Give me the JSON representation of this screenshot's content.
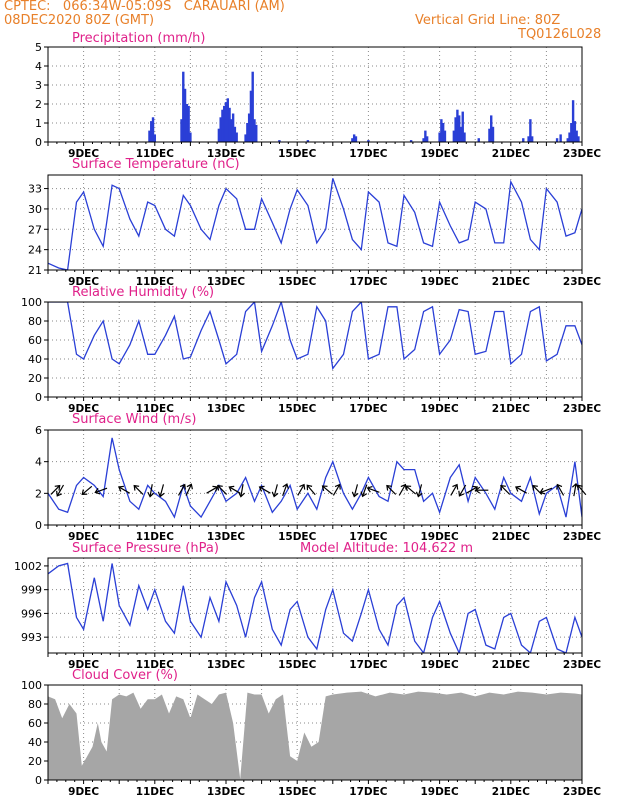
{
  "header": {
    "line1": "CPTEC:   066:34W-05:09S   CARAUARI (AM)",
    "line2": "08DEC2020 80Z (GMT)",
    "grid_note": "Vertical Grid Line: 80Z",
    "code": "TQ0126L028",
    "model_altitude": "Model Altitude: 104.622 m"
  },
  "colors": {
    "header": "#e8802a",
    "title": "#e0218a",
    "series": "#2a3fd6",
    "cloud": "#a6a6a6",
    "wind_arrow": "#000000"
  },
  "chart_data": [
    {
      "type": "bar",
      "title": "Precipitation (mm/h)",
      "x_day_range": [
        8,
        23
      ],
      "ylim": [
        0,
        5
      ],
      "yticks": [
        "0",
        "1",
        "2",
        "3",
        "4",
        "5"
      ],
      "xticks": [
        "9DEC",
        "11DEC",
        "13DEC",
        "15DEC",
        "17DEC",
        "19DEC",
        "21DEC",
        "23DEC"
      ],
      "bars": [
        [
          10.85,
          0.6
        ],
        [
          10.9,
          1.1
        ],
        [
          10.95,
          1.3
        ],
        [
          11.0,
          0.4
        ],
        [
          11.75,
          1.2
        ],
        [
          11.8,
          3.7
        ],
        [
          11.85,
          2.8
        ],
        [
          11.9,
          2.0
        ],
        [
          11.95,
          1.9
        ],
        [
          12.0,
          0.5
        ],
        [
          12.8,
          0.7
        ],
        [
          12.85,
          1.3
        ],
        [
          12.9,
          1.7
        ],
        [
          12.95,
          1.9
        ],
        [
          13.0,
          2.1
        ],
        [
          13.05,
          2.3
        ],
        [
          13.1,
          1.8
        ],
        [
          13.15,
          1.2
        ],
        [
          13.2,
          1.5
        ],
        [
          13.25,
          0.8
        ],
        [
          13.3,
          0.5
        ],
        [
          13.55,
          0.4
        ],
        [
          13.6,
          1.0
        ],
        [
          13.65,
          1.5
        ],
        [
          13.7,
          2.7
        ],
        [
          13.75,
          3.7
        ],
        [
          13.8,
          1.2
        ],
        [
          13.85,
          0.9
        ],
        [
          14.5,
          0.1
        ],
        [
          15.3,
          0.1
        ],
        [
          16.55,
          0.2
        ],
        [
          16.6,
          0.4
        ],
        [
          16.65,
          0.3
        ],
        [
          17.0,
          0.1
        ],
        [
          18.2,
          0.1
        ],
        [
          18.55,
          0.2
        ],
        [
          18.6,
          0.6
        ],
        [
          18.65,
          0.3
        ],
        [
          19.0,
          0.5
        ],
        [
          19.05,
          1.2
        ],
        [
          19.1,
          1.0
        ],
        [
          19.15,
          0.6
        ],
        [
          19.4,
          0.6
        ],
        [
          19.45,
          1.3
        ],
        [
          19.5,
          1.7
        ],
        [
          19.55,
          1.4
        ],
        [
          19.6,
          0.8
        ],
        [
          19.65,
          1.6
        ],
        [
          19.7,
          0.5
        ],
        [
          20.1,
          0.2
        ],
        [
          20.4,
          0.7
        ],
        [
          20.45,
          1.4
        ],
        [
          20.5,
          0.8
        ],
        [
          21.35,
          0.2
        ],
        [
          21.5,
          0.3
        ],
        [
          21.55,
          1.2
        ],
        [
          21.6,
          0.3
        ],
        [
          22.3,
          0.2
        ],
        [
          22.4,
          0.4
        ],
        [
          22.6,
          0.2
        ],
        [
          22.65,
          0.5
        ],
        [
          22.7,
          1.0
        ],
        [
          22.75,
          2.2
        ],
        [
          22.8,
          1.1
        ],
        [
          22.85,
          0.6
        ],
        [
          22.9,
          0.3
        ]
      ]
    },
    {
      "type": "line",
      "title": "Surface Temperature (nC)",
      "x_day_range": [
        8,
        23
      ],
      "ylim": [
        21,
        35
      ],
      "yticks": [
        "21",
        "24",
        "27",
        "30",
        "33"
      ],
      "xticks": [
        "9DEC",
        "11DEC",
        "13DEC",
        "15DEC",
        "17DEC",
        "19DEC",
        "21DEC",
        "23DEC"
      ],
      "x": [
        8.0,
        8.3,
        8.55,
        8.8,
        9.0,
        9.3,
        9.55,
        9.8,
        10.0,
        10.3,
        10.55,
        10.8,
        11.0,
        11.3,
        11.55,
        11.8,
        12.0,
        12.3,
        12.55,
        12.8,
        13.0,
        13.3,
        13.55,
        13.8,
        14.0,
        14.3,
        14.55,
        14.8,
        15.0,
        15.3,
        15.55,
        15.8,
        16.0,
        16.3,
        16.55,
        16.8,
        17.0,
        17.3,
        17.55,
        17.8,
        18.0,
        18.3,
        18.55,
        18.8,
        19.0,
        19.3,
        19.55,
        19.8,
        20.0,
        20.3,
        20.55,
        20.8,
        21.0,
        21.3,
        21.55,
        21.8,
        22.0,
        22.3,
        22.55,
        22.8,
        23.0
      ],
      "values": [
        22.0,
        21.3,
        21.0,
        31.0,
        32.5,
        27.0,
        24.5,
        33.5,
        33.0,
        28.5,
        26.0,
        31.0,
        30.5,
        27.0,
        26.0,
        32.0,
        30.5,
        27.0,
        25.5,
        30.5,
        33.0,
        31.5,
        27.0,
        27.0,
        31.5,
        28.0,
        25.0,
        30.0,
        32.8,
        30.5,
        25.0,
        27.0,
        34.5,
        30.0,
        25.5,
        24.0,
        32.5,
        31.0,
        25.0,
        24.5,
        32.0,
        29.5,
        25.0,
        24.5,
        31.0,
        27.5,
        25.0,
        25.5,
        31.0,
        30.0,
        25.0,
        25.0,
        34.0,
        31.0,
        25.5,
        24.0,
        33.0,
        31.0,
        26.0,
        26.5,
        30.0
      ]
    },
    {
      "type": "line",
      "title": "Relative Humidity (%)",
      "x_day_range": [
        8,
        23
      ],
      "ylim": [
        0,
        100
      ],
      "yticks": [
        "0",
        "20",
        "40",
        "60",
        "80",
        "100"
      ],
      "xticks": [
        "9DEC",
        "11DEC",
        "13DEC",
        "15DEC",
        "17DEC",
        "19DEC",
        "21DEC",
        "23DEC"
      ],
      "x": [
        8.0,
        8.3,
        8.55,
        8.8,
        9.0,
        9.3,
        9.55,
        9.8,
        10.0,
        10.3,
        10.55,
        10.8,
        11.0,
        11.3,
        11.55,
        11.8,
        12.0,
        12.3,
        12.55,
        12.8,
        13.0,
        13.3,
        13.55,
        13.8,
        14.0,
        14.3,
        14.55,
        14.8,
        15.0,
        15.3,
        15.55,
        15.8,
        16.0,
        16.3,
        16.55,
        16.8,
        17.0,
        17.3,
        17.55,
        17.8,
        18.0,
        18.3,
        18.55,
        18.8,
        19.0,
        19.3,
        19.55,
        19.8,
        20.0,
        20.3,
        20.55,
        20.8,
        21.0,
        21.3,
        21.55,
        21.8,
        22.0,
        22.3,
        22.55,
        22.8,
        23.0
      ],
      "values": [
        100,
        100,
        100,
        45,
        40,
        65,
        80,
        40,
        35,
        55,
        80,
        45,
        45,
        65,
        85,
        40,
        42,
        70,
        90,
        60,
        35,
        45,
        90,
        100,
        48,
        75,
        100,
        60,
        40,
        45,
        95,
        80,
        30,
        45,
        90,
        100,
        40,
        45,
        95,
        95,
        40,
        50,
        90,
        95,
        45,
        60,
        92,
        90,
        45,
        48,
        90,
        90,
        35,
        45,
        90,
        95,
        38,
        45,
        75,
        75,
        55
      ]
    },
    {
      "type": "line",
      "title": "Surface Wind (m/s)",
      "x_day_range": [
        8,
        23
      ],
      "ylim": [
        0,
        6
      ],
      "yticks": [
        "0",
        "2",
        "4",
        "6"
      ],
      "xticks": [
        "9DEC",
        "11DEC",
        "13DEC",
        "15DEC",
        "17DEC",
        "19DEC",
        "21DEC",
        "23DEC"
      ],
      "x": [
        8.0,
        8.3,
        8.55,
        8.8,
        9.0,
        9.3,
        9.55,
        9.8,
        10.0,
        10.3,
        10.55,
        10.8,
        11.0,
        11.3,
        11.55,
        11.8,
        12.0,
        12.3,
        12.55,
        12.8,
        13.0,
        13.3,
        13.55,
        13.8,
        14.0,
        14.3,
        14.55,
        14.8,
        15.0,
        15.3,
        15.55,
        15.8,
        16.0,
        16.3,
        16.55,
        16.8,
        17.0,
        17.3,
        17.55,
        17.8,
        18.0,
        18.3,
        18.55,
        18.8,
        19.0,
        19.3,
        19.55,
        19.8,
        20.0,
        20.3,
        20.55,
        20.8,
        21.0,
        21.3,
        21.55,
        21.8,
        22.0,
        22.3,
        22.55,
        22.8,
        23.0
      ],
      "values": [
        2.0,
        1.0,
        0.8,
        2.5,
        3.0,
        2.5,
        1.8,
        5.5,
        3.5,
        1.5,
        1.0,
        2.5,
        2.0,
        1.5,
        0.5,
        2.5,
        1.2,
        0.5,
        1.5,
        2.5,
        1.5,
        2.0,
        3.0,
        1.5,
        2.5,
        0.8,
        1.5,
        2.5,
        1.0,
        2.0,
        1.0,
        3.0,
        4.0,
        2.0,
        1.0,
        2.0,
        3.0,
        1.8,
        1.5,
        4.0,
        3.5,
        3.5,
        1.5,
        2.0,
        0.8,
        3.0,
        3.8,
        1.5,
        3.0,
        2.0,
        1.0,
        3.0,
        2.0,
        1.5,
        3.0,
        0.7,
        2.0,
        2.5,
        0.5,
        4.0,
        0.5
      ],
      "arrows": [
        [
          8.2,
          45
        ],
        [
          8.35,
          210
        ],
        [
          9.1,
          230
        ],
        [
          9.5,
          250
        ],
        [
          10.15,
          300
        ],
        [
          10.55,
          315
        ],
        [
          10.9,
          190
        ],
        [
          11.2,
          195
        ],
        [
          11.75,
          30
        ],
        [
          11.95,
          25
        ],
        [
          12.6,
          60
        ],
        [
          12.9,
          315
        ],
        [
          13.25,
          300
        ],
        [
          13.45,
          190
        ],
        [
          14.1,
          300
        ],
        [
          14.4,
          195
        ],
        [
          14.65,
          20
        ],
        [
          15.1,
          30
        ],
        [
          15.4,
          320
        ],
        [
          15.85,
          310
        ],
        [
          16.1,
          30
        ],
        [
          16.65,
          195
        ],
        [
          16.9,
          200
        ],
        [
          17.15,
          290
        ],
        [
          17.65,
          315
        ],
        [
          17.95,
          30
        ],
        [
          18.2,
          310
        ],
        [
          18.45,
          195
        ],
        [
          19.4,
          30
        ],
        [
          19.65,
          210
        ],
        [
          19.9,
          60
        ],
        [
          20.2,
          270
        ],
        [
          20.85,
          315
        ],
        [
          21.3,
          300
        ],
        [
          21.75,
          315
        ],
        [
          22.0,
          250
        ],
        [
          22.4,
          330
        ],
        [
          22.8,
          10
        ],
        [
          23.0,
          320
        ]
      ]
    },
    {
      "type": "line",
      "title": "Surface Pressure (hPa)",
      "x_day_range": [
        8,
        23
      ],
      "ylim": [
        991,
        1003
      ],
      "yticks": [
        "993",
        "996",
        "999",
        "1002"
      ],
      "xticks": [
        "9DEC",
        "11DEC",
        "13DEC",
        "15DEC",
        "17DEC",
        "19DEC",
        "21DEC",
        "23DEC"
      ],
      "x": [
        8.0,
        8.3,
        8.55,
        8.8,
        9.0,
        9.3,
        9.55,
        9.8,
        10.0,
        10.3,
        10.55,
        10.8,
        11.0,
        11.3,
        11.55,
        11.8,
        12.0,
        12.3,
        12.55,
        12.8,
        13.0,
        13.3,
        13.55,
        13.8,
        14.0,
        14.3,
        14.55,
        14.8,
        15.0,
        15.3,
        15.55,
        15.8,
        16.0,
        16.3,
        16.55,
        16.8,
        17.0,
        17.3,
        17.55,
        17.8,
        18.0,
        18.3,
        18.55,
        18.8,
        19.0,
        19.3,
        19.55,
        19.8,
        20.0,
        20.3,
        20.55,
        20.8,
        21.0,
        21.3,
        21.55,
        21.8,
        22.0,
        22.3,
        22.55,
        22.8,
        23.0
      ],
      "values": [
        1001.0,
        1002.0,
        1002.3,
        995.5,
        994.0,
        1000.5,
        995.0,
        1002.3,
        997.0,
        994.5,
        999.5,
        996.5,
        999.0,
        995.0,
        993.5,
        999.5,
        995.0,
        993.0,
        998.0,
        995.0,
        1000.0,
        997.0,
        993.0,
        998.0,
        1000.0,
        994.0,
        992.0,
        996.5,
        997.5,
        993.0,
        991.5,
        996.5,
        999.0,
        993.5,
        992.5,
        996.0,
        999.0,
        994.0,
        992.0,
        997.0,
        998.0,
        992.5,
        991.0,
        995.5,
        997.5,
        993.5,
        991.0,
        996.0,
        996.5,
        992.0,
        991.5,
        995.5,
        996.0,
        992.0,
        991.0,
        995.0,
        995.5,
        991.5,
        991.0,
        995.5,
        993.0
      ]
    },
    {
      "type": "area",
      "title": "Cloud Cover (%)",
      "x_day_range": [
        8,
        23
      ],
      "ylim": [
        0,
        100
      ],
      "yticks": [
        "0",
        "20",
        "40",
        "60",
        "80",
        "100"
      ],
      "xticks": [
        "9DEC",
        "11DEC",
        "13DEC",
        "15DEC",
        "17DEC",
        "19DEC",
        "21DEC",
        "23DEC"
      ],
      "x": [
        8.0,
        8.2,
        8.4,
        8.6,
        8.8,
        8.95,
        9.1,
        9.25,
        9.4,
        9.5,
        9.65,
        9.8,
        10.0,
        10.2,
        10.4,
        10.6,
        10.8,
        11.0,
        11.2,
        11.4,
        11.6,
        11.8,
        12.0,
        12.2,
        12.4,
        12.6,
        12.8,
        13.0,
        13.2,
        13.4,
        13.6,
        13.8,
        14.0,
        14.2,
        14.4,
        14.6,
        14.8,
        15.0,
        15.2,
        15.4,
        15.6,
        15.8,
        16.0,
        16.4,
        16.8,
        17.2,
        17.6,
        18.0,
        18.4,
        18.8,
        19.2,
        19.6,
        20.0,
        20.4,
        20.8,
        21.2,
        21.6,
        22.0,
        22.4,
        22.8,
        23.0
      ],
      "values": [
        88,
        85,
        65,
        80,
        70,
        15,
        25,
        35,
        60,
        40,
        30,
        85,
        90,
        88,
        92,
        75,
        85,
        85,
        90,
        70,
        88,
        85,
        65,
        90,
        85,
        80,
        90,
        92,
        60,
        1,
        92,
        90,
        90,
        70,
        85,
        90,
        25,
        20,
        50,
        35,
        40,
        88,
        90,
        92,
        93,
        88,
        92,
        90,
        93,
        92,
        90,
        92,
        88,
        92,
        90,
        93,
        92,
        90,
        92,
        91,
        90
      ]
    }
  ]
}
